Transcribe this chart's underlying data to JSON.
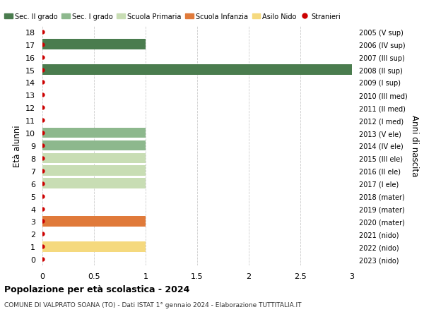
{
  "ages": [
    18,
    17,
    16,
    15,
    14,
    13,
    12,
    11,
    10,
    9,
    8,
    7,
    6,
    5,
    4,
    3,
    2,
    1,
    0
  ],
  "years_right": [
    "2005 (V sup)",
    "2006 (IV sup)",
    "2007 (III sup)",
    "2008 (II sup)",
    "2009 (I sup)",
    "2010 (III med)",
    "2011 (II med)",
    "2012 (I med)",
    "2013 (V ele)",
    "2014 (IV ele)",
    "2015 (III ele)",
    "2016 (II ele)",
    "2017 (I ele)",
    "2018 (mater)",
    "2019 (mater)",
    "2020 (mater)",
    "2021 (nido)",
    "2022 (nido)",
    "2023 (nido)"
  ],
  "bars": [
    {
      "age": 17,
      "value": 1.0,
      "color": "#4a7c4e"
    },
    {
      "age": 15,
      "value": 3.0,
      "color": "#4a7c4e"
    },
    {
      "age": 10,
      "value": 1.0,
      "color": "#8db88d"
    },
    {
      "age": 9,
      "value": 1.0,
      "color": "#8db88d"
    },
    {
      "age": 8,
      "value": 1.0,
      "color": "#c8ddb4"
    },
    {
      "age": 7,
      "value": 1.0,
      "color": "#c8ddb4"
    },
    {
      "age": 6,
      "value": 1.0,
      "color": "#c8ddb4"
    },
    {
      "age": 3,
      "value": 1.0,
      "color": "#e07a3a"
    },
    {
      "age": 1,
      "value": 1.0,
      "color": "#f5d97e"
    }
  ],
  "red_dot_ages": [
    18,
    17,
    16,
    15,
    14,
    13,
    12,
    11,
    10,
    9,
    8,
    7,
    6,
    5,
    4,
    3,
    2,
    1,
    0
  ],
  "dot_color": "#cc0000",
  "legend_items": [
    {
      "label": "Sec. II grado",
      "color": "#4a7c4e",
      "type": "patch"
    },
    {
      "label": "Sec. I grado",
      "color": "#8db88d",
      "type": "patch"
    },
    {
      "label": "Scuola Primaria",
      "color": "#c8ddb4",
      "type": "patch"
    },
    {
      "label": "Scuola Infanzia",
      "color": "#e07a3a",
      "type": "patch"
    },
    {
      "label": "Asilo Nido",
      "color": "#f5d97e",
      "type": "patch"
    },
    {
      "label": "Stranieri",
      "color": "#cc0000",
      "type": "dot"
    }
  ],
  "ylabel_left": "Età alunni",
  "ylabel_right": "Anni di nascita",
  "xlim": [
    0,
    3.0
  ],
  "xticks": [
    0,
    0.5,
    1.0,
    1.5,
    2.0,
    2.5,
    3.0
  ],
  "ylim": [
    -0.5,
    18.5
  ],
  "title": "Popolazione per età scolastica - 2024",
  "subtitle": "COMUNE DI VALPRATO SOANA (TO) - Dati ISTAT 1° gennaio 2024 - Elaborazione TUTTITALIA.IT",
  "background_color": "#ffffff",
  "grid_color": "#cccccc"
}
